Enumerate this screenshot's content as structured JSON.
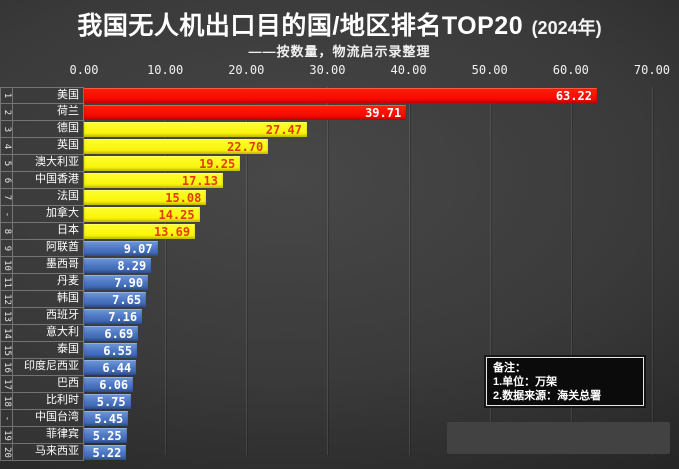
{
  "header": {
    "title": "我国无人机出口目的国/地区排名TOP20",
    "year": "(2024年)",
    "subtitle": "——按数量，物流启示录整理"
  },
  "axis": {
    "ticks": [
      "0.00",
      "10.00",
      "20.00",
      "30.00",
      "40.00",
      "50.00",
      "60.00",
      "70.00"
    ]
  },
  "chart_data": {
    "type": "bar",
    "orientation": "horizontal",
    "title": "我国无人机出口目的国/地区排名TOP20 (2024年)",
    "subtitle": "——按数量，物流启示录整理",
    "unit": "万架",
    "xlim": [
      0,
      70
    ],
    "x_tick_values": [
      0,
      10,
      20,
      30,
      40,
      50,
      60,
      70
    ],
    "grid": true,
    "rows": [
      {
        "rank": "1",
        "name": "美国",
        "value": 63.22,
        "label": "63.22",
        "color": "red"
      },
      {
        "rank": "2",
        "name": "荷兰",
        "value": 39.71,
        "label": "39.71",
        "color": "red"
      },
      {
        "rank": "3",
        "name": "德国",
        "value": 27.47,
        "label": "27.47",
        "color": "yellow"
      },
      {
        "rank": "4",
        "name": "英国",
        "value": 22.7,
        "label": "22.70",
        "color": "yellow"
      },
      {
        "rank": "5",
        "name": "澳大利亚",
        "value": 19.25,
        "label": "19.25",
        "color": "yellow"
      },
      {
        "rank": "6",
        "name": "中国香港",
        "value": 17.13,
        "label": "17.13",
        "color": "yellow"
      },
      {
        "rank": "7",
        "name": "法国",
        "value": 15.08,
        "label": "15.08",
        "color": "yellow"
      },
      {
        "rank": "-",
        "name": "加拿大",
        "value": 14.25,
        "label": "14.25",
        "color": "yellow"
      },
      {
        "rank": "8",
        "name": "日本",
        "value": 13.69,
        "label": "13.69",
        "color": "yellow"
      },
      {
        "rank": "9",
        "name": "阿联酋",
        "value": 9.07,
        "label": "9.07",
        "color": "blue"
      },
      {
        "rank": "10",
        "name": "墨西哥",
        "value": 8.29,
        "label": "8.29",
        "color": "blue"
      },
      {
        "rank": "11",
        "name": "丹麦",
        "value": 7.9,
        "label": "7.90",
        "color": "blue"
      },
      {
        "rank": "12",
        "name": "韩国",
        "value": 7.65,
        "label": "7.65",
        "color": "blue"
      },
      {
        "rank": "13",
        "name": "西班牙",
        "value": 7.16,
        "label": "7.16",
        "color": "blue"
      },
      {
        "rank": "14",
        "name": "意大利",
        "value": 6.69,
        "label": "6.69",
        "color": "blue"
      },
      {
        "rank": "15",
        "name": "泰国",
        "value": 6.55,
        "label": "6.55",
        "color": "blue"
      },
      {
        "rank": "16",
        "name": "印度尼西亚",
        "value": 6.44,
        "label": "6.44",
        "color": "blue"
      },
      {
        "rank": "17",
        "name": "巴西",
        "value": 6.06,
        "label": "6.06",
        "color": "blue"
      },
      {
        "rank": "18",
        "name": "比利时",
        "value": 5.75,
        "label": "5.75",
        "color": "blue"
      },
      {
        "rank": "-",
        "name": "中国台湾",
        "value": 5.45,
        "label": "5.45",
        "color": "blue"
      },
      {
        "rank": "19",
        "name": "菲律宾",
        "value": 5.25,
        "label": "5.25",
        "color": "blue"
      },
      {
        "rank": "20",
        "name": "马来西亚",
        "value": 5.22,
        "label": "5.22",
        "color": "blue"
      }
    ]
  },
  "styles": {
    "red": {
      "bar": "linear-gradient(180deg,#ff2008,#ee0300)",
      "text": "#ffffff"
    },
    "yellow": {
      "bar": "linear-gradient(180deg,#ffff2e,#f7ef00)",
      "text": "#e23c0c"
    },
    "blue": {
      "bar": "linear-gradient(180deg,#7099d9 0%,#4a74c0 55%,#3b63ae 100%)",
      "text": "#ffffff"
    }
  },
  "note": {
    "title": "备注：",
    "line1": "1.单位：万架",
    "line2": "2.数据来源：海关总署"
  }
}
